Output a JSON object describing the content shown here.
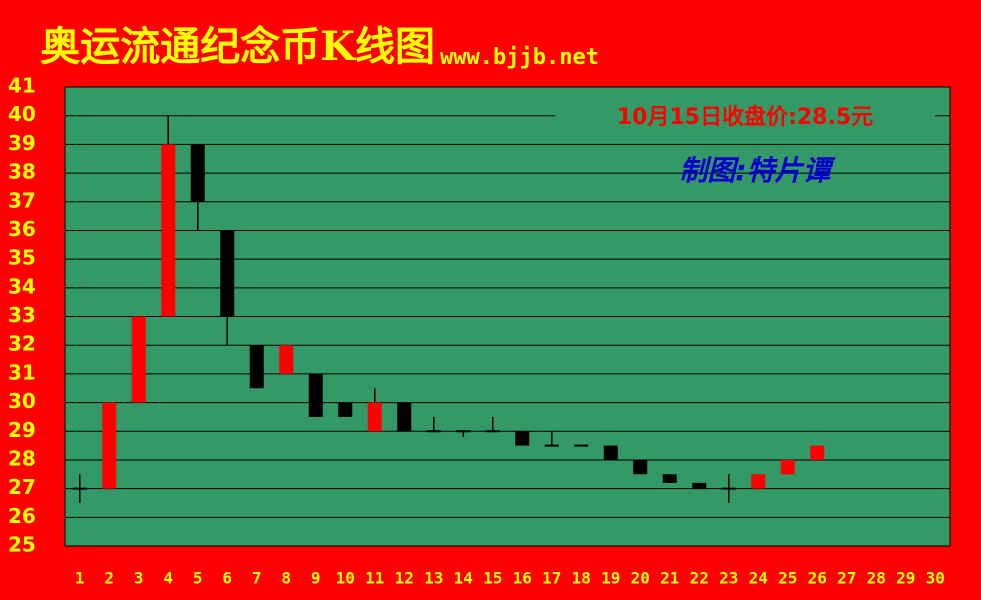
{
  "chart_data": {
    "type": "candlestick",
    "title": "奥运流通纪念币K线图",
    "subtitle": "www.bjjb.net",
    "annotations": [
      "10月15日收盘价:28.5元",
      "制图:特片谭"
    ],
    "categories": [
      "1",
      "2",
      "3",
      "4",
      "5",
      "6",
      "7",
      "8",
      "9",
      "10",
      "11",
      "12",
      "13",
      "14",
      "15",
      "16",
      "17",
      "18",
      "19",
      "20",
      "21",
      "22",
      "23",
      "24",
      "25",
      "26",
      "27",
      "28",
      "29",
      "30"
    ],
    "open": [
      27,
      27,
      30,
      33,
      39,
      36,
      32,
      31,
      31,
      30,
      29,
      30,
      29,
      29,
      29,
      29,
      28.5,
      28.5,
      28.5,
      28,
      27.5,
      27.2,
      27,
      27,
      27.5,
      28,
      null,
      null,
      null,
      null
    ],
    "high": [
      27.5,
      30,
      33,
      40,
      39,
      36,
      32,
      32,
      31,
      30,
      30.5,
      30,
      29.5,
      29,
      29.5,
      29,
      29,
      28.5,
      28.5,
      28,
      27.5,
      27.2,
      27.5,
      27.5,
      28,
      28.5,
      null,
      null,
      null,
      null
    ],
    "low": [
      26.5,
      27,
      30,
      33,
      36,
      32,
      30.5,
      31,
      29.5,
      29.5,
      29,
      29,
      29,
      28.8,
      29,
      28.5,
      28.5,
      28.5,
      28,
      27.5,
      27.2,
      27,
      26.5,
      27,
      27.5,
      28,
      null,
      null,
      null,
      null
    ],
    "close": [
      27,
      30,
      33,
      39,
      37,
      33,
      30.5,
      32,
      29.5,
      29.5,
      30,
      29,
      29,
      29,
      29,
      28.5,
      28.5,
      28.5,
      28,
      27.5,
      27.2,
      27,
      27,
      27.5,
      28,
      28.5,
      null,
      null,
      null,
      null
    ],
    "up_color": "#ff0000",
    "down_color": "#000000",
    "ylim": [
      25,
      41
    ],
    "yticks": [
      25,
      26,
      27,
      28,
      29,
      30,
      31,
      32,
      33,
      34,
      35,
      36,
      37,
      38,
      39,
      40,
      41
    ],
    "grid": true
  }
}
